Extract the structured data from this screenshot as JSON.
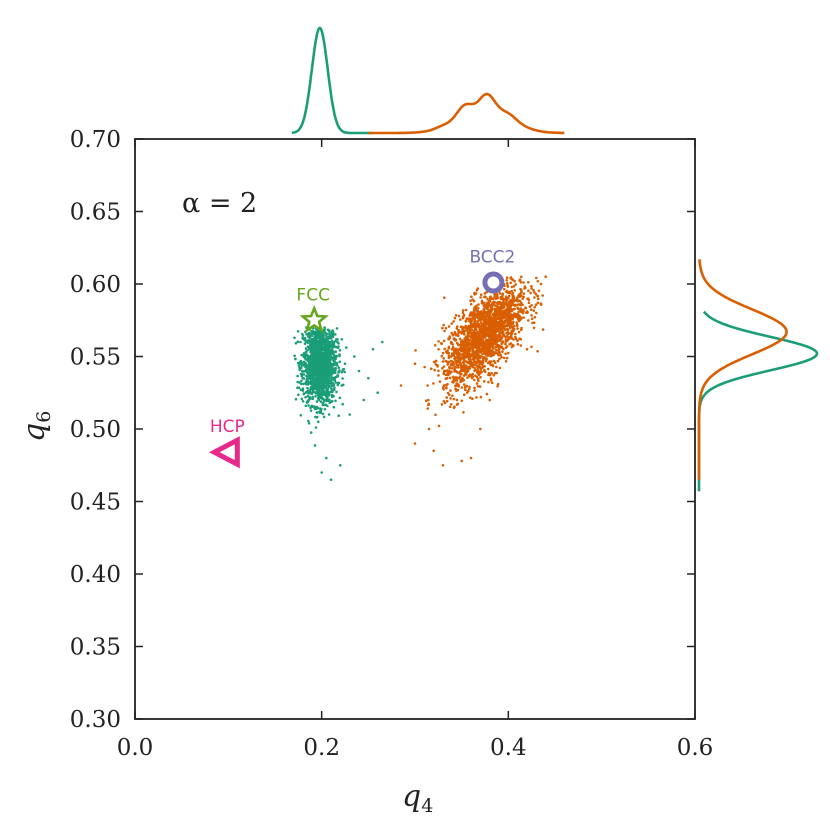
{
  "chart_data": {
    "type": "scatter",
    "xlabel": "q",
    "xlabel_sub": "4",
    "ylabel": "q",
    "ylabel_sub": "6",
    "xlim": [
      0.0,
      0.6
    ],
    "ylim": [
      0.3,
      0.7
    ],
    "xticks": [
      "0.0",
      "0.2",
      "0.4",
      "0.6"
    ],
    "yticks": [
      "0.30",
      "0.35",
      "0.40",
      "0.45",
      "0.50",
      "0.55",
      "0.60",
      "0.65",
      "0.70"
    ],
    "annotation": "α = 2",
    "series": [
      {
        "color": "#1b9e77",
        "cluster": {
          "cx": 0.198,
          "cy": 0.545,
          "sx": 0.009,
          "sy": 0.014,
          "n": 1600,
          "x_range": [
            0.17,
            0.265
          ],
          "y_range": [
            0.465,
            0.57
          ]
        },
        "outliers": [
          [
            0.21,
            0.56
          ],
          [
            0.225,
            0.545
          ],
          [
            0.235,
            0.55
          ],
          [
            0.24,
            0.54
          ],
          [
            0.25,
            0.535
          ],
          [
            0.26,
            0.525
          ],
          [
            0.265,
            0.56
          ],
          [
            0.2,
            0.47
          ],
          [
            0.21,
            0.465
          ],
          [
            0.22,
            0.475
          ],
          [
            0.23,
            0.51
          ],
          [
            0.245,
            0.52
          ],
          [
            0.255,
            0.555
          ],
          [
            0.205,
            0.48
          ]
        ]
      },
      {
        "color": "#d95f02",
        "cluster": {
          "cx": 0.375,
          "cy": 0.565,
          "sx": 0.022,
          "sy": 0.018,
          "rho": 0.65,
          "n": 1900,
          "x_range": [
            0.29,
            0.44
          ],
          "y_range": [
            0.475,
            0.605
          ]
        },
        "outliers": [
          [
            0.3,
            0.49
          ],
          [
            0.315,
            0.5
          ],
          [
            0.32,
            0.485
          ],
          [
            0.33,
            0.475
          ],
          [
            0.35,
            0.478
          ],
          [
            0.36,
            0.48
          ],
          [
            0.37,
            0.5
          ],
          [
            0.285,
            0.53
          ],
          [
            0.3,
            0.545
          ],
          [
            0.42,
            0.555
          ],
          [
            0.43,
            0.58
          ],
          [
            0.44,
            0.605
          ],
          [
            0.435,
            0.6
          ],
          [
            0.38,
            0.52
          ]
        ]
      }
    ],
    "reference_points": [
      {
        "name": "FCC",
        "x": 0.192,
        "y": 0.575,
        "marker": "star",
        "color": "#66a61e"
      },
      {
        "name": "BCC2",
        "x": 0.384,
        "y": 0.601,
        "marker": "ring",
        "color": "#7570b3"
      },
      {
        "name": "HCP",
        "x": 0.1,
        "y": 0.484,
        "marker": "triangle-left",
        "color": "#e7298a"
      }
    ],
    "marginal_x": [
      {
        "color": "#1b9e77",
        "peaks": [
          {
            "mu": 0.198,
            "sigma": 0.0085,
            "w": 1.0
          }
        ],
        "range": [
          0.168,
          0.255
        ]
      },
      {
        "color": "#d95f02",
        "peaks": [
          {
            "mu": 0.373,
            "sigma": 0.025,
            "w": 1.0
          }
        ],
        "range": [
          0.25,
          0.46
        ]
      }
    ],
    "marginal_y": [
      {
        "color": "#1b9e77",
        "peaks": [
          {
            "mu": 0.552,
            "sigma": 0.0115,
            "w": 1.0
          }
        ],
        "range": [
          0.457,
          0.581
        ]
      },
      {
        "color": "#d95f02",
        "peaks": [
          {
            "mu": 0.567,
            "sigma": 0.0155,
            "w": 1.0
          }
        ],
        "range": [
          0.465,
          0.617
        ]
      }
    ]
  }
}
